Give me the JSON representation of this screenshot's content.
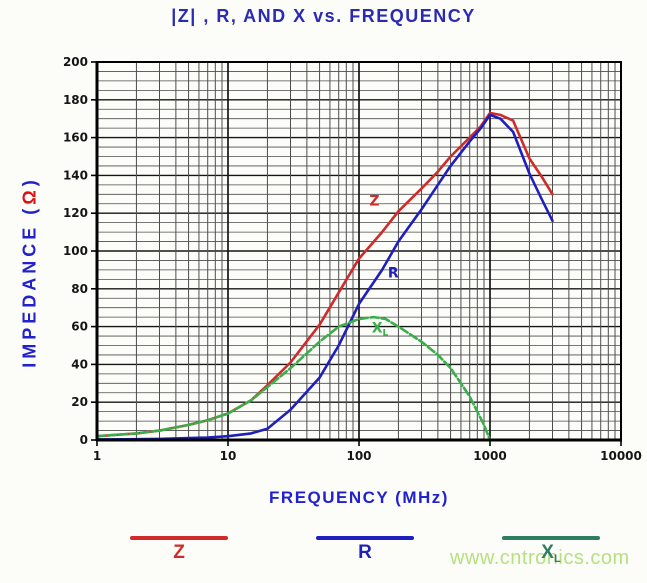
{
  "title": "|Z| , R, AND X vs. FREQUENCY",
  "ylabel_parts": {
    "prefix": "IMPEDANCE (",
    "omega": "Ω",
    "suffix": ")"
  },
  "watermark": "www.cntronics.com",
  "colors": {
    "title_blue": "#2a2ab5",
    "axis_label_blue": "#2222cc",
    "omega_red": "#dd1111",
    "tick_text": "#151515",
    "grid_minor": "#4d4d4d",
    "grid_major": "#161616",
    "frame": "#000000",
    "z_red": "#cf2b2b",
    "r_blue": "#1f1fbe",
    "x_green": "#3aae4a",
    "legend_x_green": "#2f7d62",
    "watermark_green": "#b7e080"
  },
  "legend": {
    "items": [
      {
        "label": "Z",
        "sub": "",
        "color": "#cf2b2b"
      },
      {
        "label": "R",
        "sub": "",
        "color": "#1f1fbe"
      },
      {
        "label": "X",
        "sub": "L",
        "color": "#2f7d62"
      }
    ]
  },
  "chart_data": {
    "type": "line",
    "title": "|Z| , R, AND X vs. FREQUENCY",
    "xlabel": "FREQUENCY (MHz)",
    "ylabel": "IMPEDANCE (Ω)",
    "x_scale": "log",
    "xlim": [
      1,
      10000
    ],
    "ylim": [
      0,
      200
    ],
    "y_major_step": 20,
    "y_minor_step": 5,
    "x_ticks": [
      "1",
      "10",
      "100",
      "1000",
      "10000"
    ],
    "grid": "on",
    "legend_position": "bottom",
    "series": [
      {
        "name": "Z",
        "color": "#cf2b2b",
        "dash": "",
        "x": [
          1,
          2,
          3,
          5,
          7,
          10,
          15,
          20,
          30,
          50,
          70,
          100,
          150,
          200,
          300,
          400,
          500,
          700,
          850,
          1000,
          1200,
          1500,
          2000,
          2500,
          3000
        ],
        "y": [
          2,
          3.5,
          5,
          8,
          10.5,
          14,
          21,
          29,
          41,
          61,
          78,
          96,
          110,
          121,
          133,
          142,
          150,
          160,
          166,
          173,
          172,
          169,
          149,
          139,
          130
        ]
      },
      {
        "name": "R",
        "color": "#1f1fbe",
        "dash": "",
        "x": [
          1,
          2,
          3,
          5,
          7,
          10,
          15,
          20,
          30,
          50,
          70,
          100,
          150,
          200,
          300,
          400,
          500,
          700,
          850,
          1000,
          1200,
          1500,
          2000,
          2500,
          3000
        ],
        "y": [
          0.3,
          0.4,
          0.6,
          1,
          1.3,
          2,
          3.5,
          6,
          16,
          33,
          50,
          72,
          90,
          105,
          122,
          135,
          145,
          158,
          165,
          172,
          170,
          163,
          141,
          127,
          116
        ]
      },
      {
        "name": "XL",
        "color": "#3aae4a",
        "dash": "8 3",
        "x": [
          1,
          2,
          3,
          5,
          7,
          10,
          15,
          20,
          30,
          50,
          70,
          100,
          130,
          160,
          200,
          300,
          400,
          500,
          600,
          700,
          800,
          900,
          1000
        ],
        "y": [
          2,
          3.5,
          5,
          8,
          10.5,
          14,
          21,
          28,
          38,
          52,
          60,
          64,
          65,
          64,
          60,
          52,
          45,
          38,
          30,
          23,
          15,
          8,
          0
        ]
      }
    ],
    "annotations": [
      {
        "text": "Z",
        "sub": "",
        "f": 120,
        "v": 124,
        "color": "#cf2b2b"
      },
      {
        "text": "R",
        "sub": "",
        "f": 166,
        "v": 86,
        "color": "#1f1fbe"
      },
      {
        "text": "X",
        "sub": "L",
        "f": 125,
        "v": 57,
        "color": "#3aae4a"
      }
    ]
  }
}
